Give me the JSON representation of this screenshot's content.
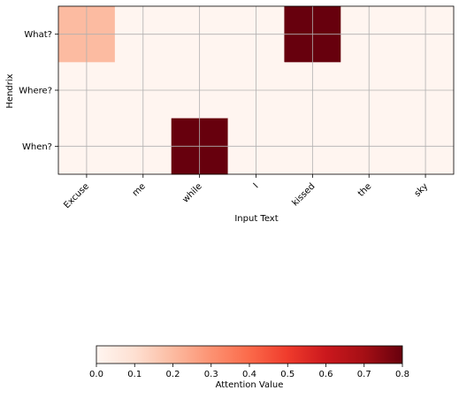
{
  "chart_data": {
    "type": "heatmap",
    "x_categories": [
      "Excuse",
      "me",
      "while",
      "I",
      "kissed",
      "the",
      "sky"
    ],
    "y_categories": [
      "What?",
      "Where?",
      "When?"
    ],
    "values": [
      [
        0.2,
        0.0,
        0.0,
        0.0,
        0.8,
        0.0,
        0.0
      ],
      [
        0.0,
        0.0,
        0.0,
        0.0,
        0.0,
        0.0,
        0.0
      ],
      [
        0.0,
        0.0,
        0.8,
        0.0,
        0.0,
        0.0,
        0.0
      ]
    ],
    "xlabel": "Input Text",
    "ylabel": "Hendrix",
    "grid": true,
    "colormap": "Reds",
    "colorbar": {
      "label": "Attention Value",
      "min": 0.0,
      "max": 0.8,
      "ticks": [
        "0.0",
        "0.1",
        "0.2",
        "0.3",
        "0.4",
        "0.5",
        "0.6",
        "0.7",
        "0.8"
      ],
      "orientation": "horizontal"
    },
    "colors": {
      "grid": "#b0b0b0",
      "stops": [
        "#fff5f0",
        "#fee0d2",
        "#fcbba1",
        "#fc9272",
        "#fb6a4a",
        "#ef3b2c",
        "#cb181d",
        "#a50f15",
        "#67000d"
      ]
    }
  }
}
